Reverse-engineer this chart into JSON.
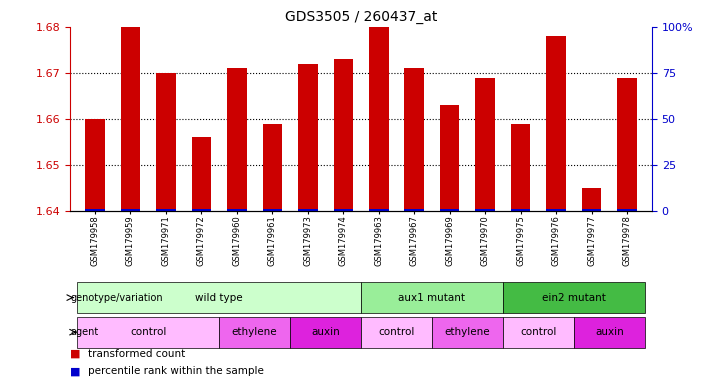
{
  "title": "GDS3505 / 260437_at",
  "samples": [
    "GSM179958",
    "GSM179959",
    "GSM179971",
    "GSM179972",
    "GSM179960",
    "GSM179961",
    "GSM179973",
    "GSM179974",
    "GSM179963",
    "GSM179967",
    "GSM179969",
    "GSM179970",
    "GSM179975",
    "GSM179976",
    "GSM179977",
    "GSM179978"
  ],
  "transformed_counts": [
    1.66,
    1.68,
    1.67,
    1.656,
    1.671,
    1.659,
    1.672,
    1.673,
    1.68,
    1.671,
    1.663,
    1.669,
    1.659,
    1.678,
    1.645,
    1.669
  ],
  "ylim_left": [
    1.64,
    1.68
  ],
  "ylim_right": [
    0,
    100
  ],
  "yticks_left": [
    1.64,
    1.65,
    1.66,
    1.67,
    1.68
  ],
  "yticks_right": [
    0,
    25,
    50,
    75,
    100
  ],
  "ytick_labels_right": [
    "0",
    "25",
    "50",
    "75",
    "100%"
  ],
  "grid_yticks": [
    1.65,
    1.66,
    1.67
  ],
  "bar_color": "#cc0000",
  "percentile_color": "#0000cc",
  "background_color": "#ffffff",
  "genotype_groups": [
    {
      "label": "wild type",
      "start": 0,
      "end": 7,
      "color": "#ccffcc"
    },
    {
      "label": "aux1 mutant",
      "start": 8,
      "end": 11,
      "color": "#99ee99"
    },
    {
      "label": "ein2 mutant",
      "start": 12,
      "end": 15,
      "color": "#44bb44"
    }
  ],
  "agent_groups": [
    {
      "label": "control",
      "start": 0,
      "end": 3,
      "color": "#ffbbff"
    },
    {
      "label": "ethylene",
      "start": 4,
      "end": 5,
      "color": "#ee66ee"
    },
    {
      "label": "auxin",
      "start": 6,
      "end": 7,
      "color": "#dd22dd"
    },
    {
      "label": "control",
      "start": 8,
      "end": 9,
      "color": "#ffbbff"
    },
    {
      "label": "ethylene",
      "start": 10,
      "end": 11,
      "color": "#ee66ee"
    },
    {
      "label": "control",
      "start": 12,
      "end": 13,
      "color": "#ffbbff"
    },
    {
      "label": "auxin",
      "start": 14,
      "end": 15,
      "color": "#dd22dd"
    }
  ],
  "legend_items": [
    {
      "label": "transformed count",
      "color": "#cc0000"
    },
    {
      "label": "percentile rank within the sample",
      "color": "#0000cc"
    }
  ],
  "tick_color_left": "#cc0000",
  "tick_color_right": "#0000cc",
  "title_fontsize": 10,
  "bar_width": 0.55
}
